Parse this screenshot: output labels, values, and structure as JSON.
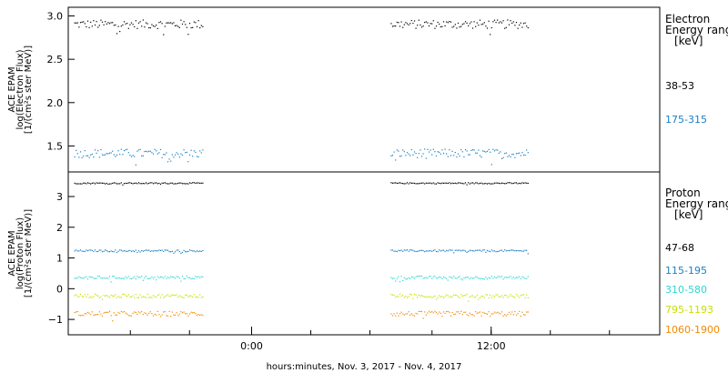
{
  "chart_data": {
    "type": "scatter",
    "xlabel": "hours:minutes, Nov.  3, 2017 - Nov.  4, 2017",
    "x_ticks": [
      "0:00",
      "12:00"
    ],
    "panels": [
      {
        "name": "electron",
        "ylabel_lines": [
          "ACE EPAM",
          "log(Electron Flux)",
          "[1/(cm²s ster MeV)]"
        ],
        "ylim": [
          1.2,
          3.1
        ],
        "y_ticks": [
          {
            "v": 3.0,
            "t": "3.0"
          },
          {
            "v": 2.5,
            "t": "2.5"
          },
          {
            "v": 2.0,
            "t": "2.0"
          },
          {
            "v": 1.5,
            "t": "1.5"
          }
        ],
        "legend_title": [
          "Electron",
          "Energy range",
          "[keV]"
        ],
        "series": [
          {
            "name": "38-53",
            "color": "#000000",
            "mean": 2.91,
            "spread": 0.05
          },
          {
            "name": "175-315",
            "color": "#1a7fc4",
            "mean": 1.42,
            "spread": 0.05
          }
        ]
      },
      {
        "name": "proton",
        "ylabel_lines": [
          "ACE EPAM",
          "log(Proton Flux)",
          "[1/(cm²s ster MeV)]"
        ],
        "ylim": [
          -1.5,
          3.8
        ],
        "y_ticks": [
          {
            "v": 3,
            "t": "3"
          },
          {
            "v": 2,
            "t": "2"
          },
          {
            "v": 1,
            "t": "1"
          },
          {
            "v": 0,
            "t": "0"
          },
          {
            "v": -1,
            "t": "−1"
          }
        ],
        "legend_title": [
          "Proton",
          "Energy range",
          "[keV]"
        ],
        "series": [
          {
            "name": "47-68",
            "color": "#000000",
            "mean": 3.45,
            "spread": 0.02
          },
          {
            "name": "115-195",
            "color": "#1a7fc4",
            "mean": 1.25,
            "spread": 0.03
          },
          {
            "name": "310-580",
            "color": "#2fd6d0",
            "mean": 0.38,
            "spread": 0.05
          },
          {
            "name": "795-1193",
            "color": "#c8e000",
            "mean": -0.22,
            "spread": 0.06
          },
          {
            "name": "1060-1900",
            "color": "#f08a00",
            "mean": -0.8,
            "spread": 0.08
          }
        ]
      }
    ]
  }
}
